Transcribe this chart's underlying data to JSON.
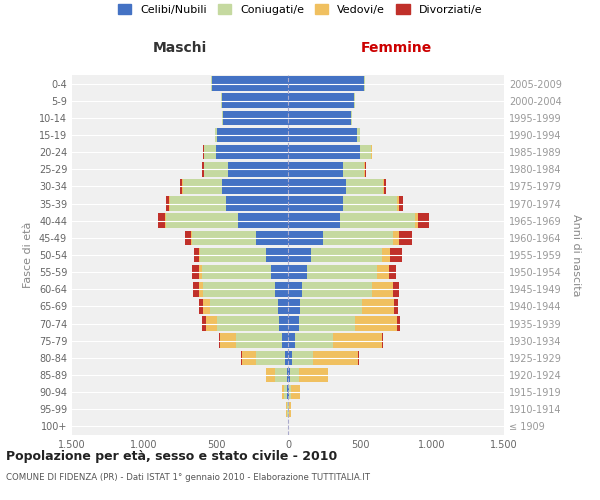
{
  "age_groups": [
    "100+",
    "95-99",
    "90-94",
    "85-89",
    "80-84",
    "75-79",
    "70-74",
    "65-69",
    "60-64",
    "55-59",
    "50-54",
    "45-49",
    "40-44",
    "35-39",
    "30-34",
    "25-29",
    "20-24",
    "15-19",
    "10-14",
    "5-9",
    "0-4"
  ],
  "birth_years": [
    "≤ 1909",
    "1910-1914",
    "1915-1919",
    "1920-1924",
    "1925-1929",
    "1930-1934",
    "1935-1939",
    "1940-1944",
    "1945-1949",
    "1950-1954",
    "1955-1959",
    "1960-1964",
    "1965-1969",
    "1970-1974",
    "1975-1979",
    "1980-1984",
    "1985-1989",
    "1990-1994",
    "1995-1999",
    "2000-2004",
    "2005-2009"
  ],
  "male": {
    "celibi": [
      2,
      3,
      5,
      10,
      20,
      40,
      60,
      70,
      90,
      120,
      150,
      220,
      350,
      430,
      460,
      420,
      500,
      490,
      450,
      460,
      530
    ],
    "coniugati": [
      0,
      5,
      20,
      80,
      200,
      320,
      430,
      470,
      500,
      480,
      460,
      450,
      500,
      390,
      270,
      160,
      80,
      20,
      5,
      5,
      5
    ],
    "vedovi": [
      0,
      5,
      20,
      60,
      100,
      110,
      80,
      50,
      30,
      15,
      10,
      5,
      5,
      5,
      5,
      5,
      5,
      0,
      0,
      0,
      0
    ],
    "divorziati": [
      0,
      0,
      0,
      0,
      5,
      10,
      30,
      30,
      40,
      50,
      30,
      40,
      50,
      20,
      15,
      10,
      5,
      0,
      0,
      0,
      0
    ]
  },
  "female": {
    "nubili": [
      2,
      3,
      8,
      15,
      25,
      50,
      75,
      85,
      100,
      130,
      160,
      240,
      360,
      380,
      400,
      380,
      500,
      480,
      440,
      460,
      530
    ],
    "coniugate": [
      0,
      5,
      15,
      60,
      150,
      260,
      390,
      430,
      480,
      490,
      490,
      490,
      520,
      380,
      260,
      150,
      75,
      18,
      5,
      5,
      5
    ],
    "vedove": [
      0,
      15,
      60,
      200,
      310,
      340,
      290,
      220,
      150,
      80,
      60,
      40,
      20,
      10,
      5,
      5,
      5,
      0,
      0,
      0,
      0
    ],
    "divorziate": [
      0,
      0,
      0,
      5,
      5,
      10,
      20,
      30,
      40,
      50,
      80,
      90,
      80,
      30,
      15,
      10,
      5,
      0,
      0,
      0,
      0
    ]
  },
  "colors": {
    "celibi": "#4472c4",
    "coniugati": "#c5d9a0",
    "vedovi": "#f0c060",
    "divorziati": "#c0302a"
  },
  "title": "Popolazione per età, sesso e stato civile - 2010",
  "subtitle": "COMUNE DI FIDENZA (PR) - Dati ISTAT 1° gennaio 2010 - Elaborazione TUTTITALIA.IT",
  "xlabel_left": "Maschi",
  "xlabel_right": "Femmine",
  "ylabel_left": "Fasce di età",
  "ylabel_right": "Anni di nascita",
  "xlim": 1500,
  "bg_color": "#ffffff",
  "plot_bg": "#f0f0f0",
  "grid_color": "#ffffff",
  "legend_labels": [
    "Celibi/Nubili",
    "Coniugati/e",
    "Vedovi/e",
    "Divorziati/e"
  ]
}
